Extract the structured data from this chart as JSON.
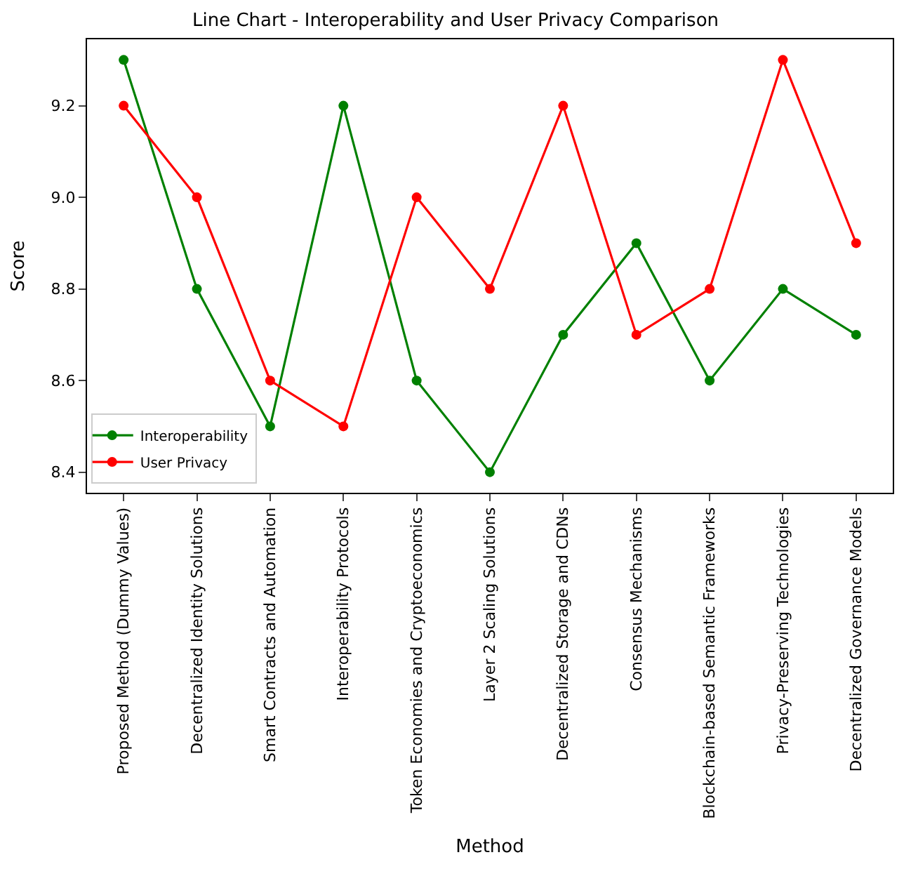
{
  "chart_data": {
    "type": "line",
    "title": "Line Chart - Interoperability and User Privacy Comparison",
    "xlabel": "Method",
    "ylabel": "Score",
    "categories": [
      "Proposed Method (Dummy Values)",
      "Decentralized Identity Solutions",
      "Smart Contracts and Automation",
      "Interoperability Protocols",
      "Token Economies and Cryptoeconomics",
      "Layer 2 Scaling Solutions",
      "Decentralized Storage and CDNs",
      "Consensus Mechanisms",
      "Blockchain-based Semantic Frameworks",
      "Privacy-Preserving Technologies",
      "Decentralized Governance Models"
    ],
    "series": [
      {
        "name": "Interoperability",
        "color": "#008000",
        "values": [
          9.3,
          8.8,
          8.5,
          9.2,
          8.6,
          8.4,
          8.7,
          8.9,
          8.6,
          8.8,
          8.7
        ]
      },
      {
        "name": "User Privacy",
        "color": "#ff0000",
        "values": [
          9.2,
          9.0,
          8.6,
          8.5,
          9.0,
          8.8,
          9.2,
          8.7,
          8.8,
          9.3,
          8.9
        ]
      }
    ],
    "ylim": [
      8.355,
      9.345
    ],
    "yticks": [
      8.4,
      8.6,
      8.8,
      {
        "value": 9.0,
        "label": "9.0"
      },
      9.2
    ],
    "legend": "bottom left",
    "marker": "circle",
    "line_style": "solid"
  }
}
